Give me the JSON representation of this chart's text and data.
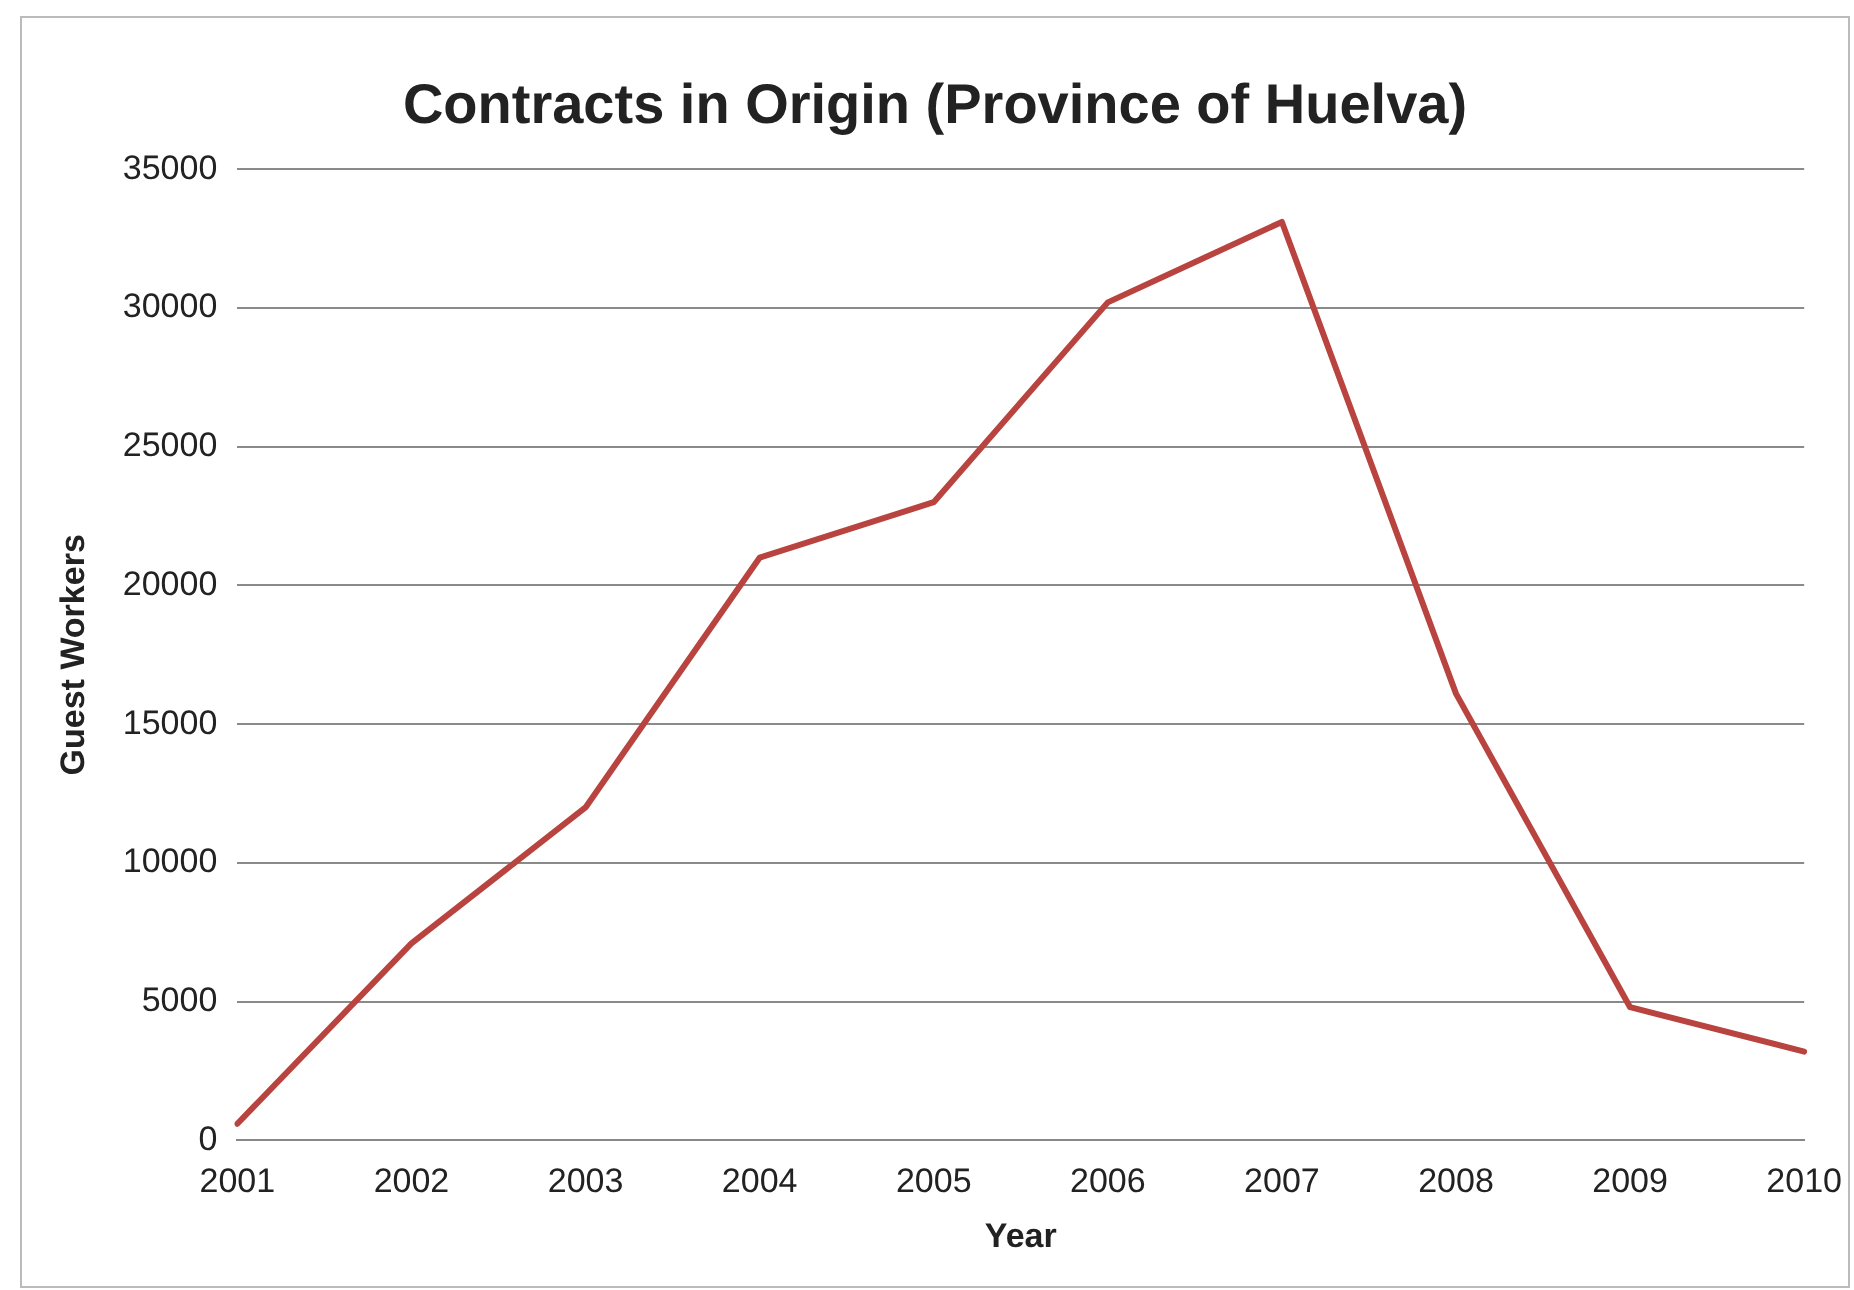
{
  "chart_data": {
    "type": "line",
    "title": "Contracts in Origin (Province of Huelva)",
    "xlabel": "Year",
    "ylabel": "Guest Workers",
    "categories": [
      "2001",
      "2002",
      "2003",
      "2004",
      "2005",
      "2006",
      "2007",
      "2008",
      "2009",
      "2010"
    ],
    "series": [
      {
        "color": "#b8433f",
        "values": [
          600,
          7100,
          12000,
          21000,
          23000,
          30200,
          33100,
          16100,
          4800,
          3200
        ]
      }
    ],
    "ylim": [
      0,
      35000
    ],
    "yticks": [
      0,
      5000,
      10000,
      15000,
      20000,
      25000,
      30000,
      35000
    ],
    "grid": "y",
    "legend": false,
    "marker": "none",
    "line_style": "solid"
  }
}
